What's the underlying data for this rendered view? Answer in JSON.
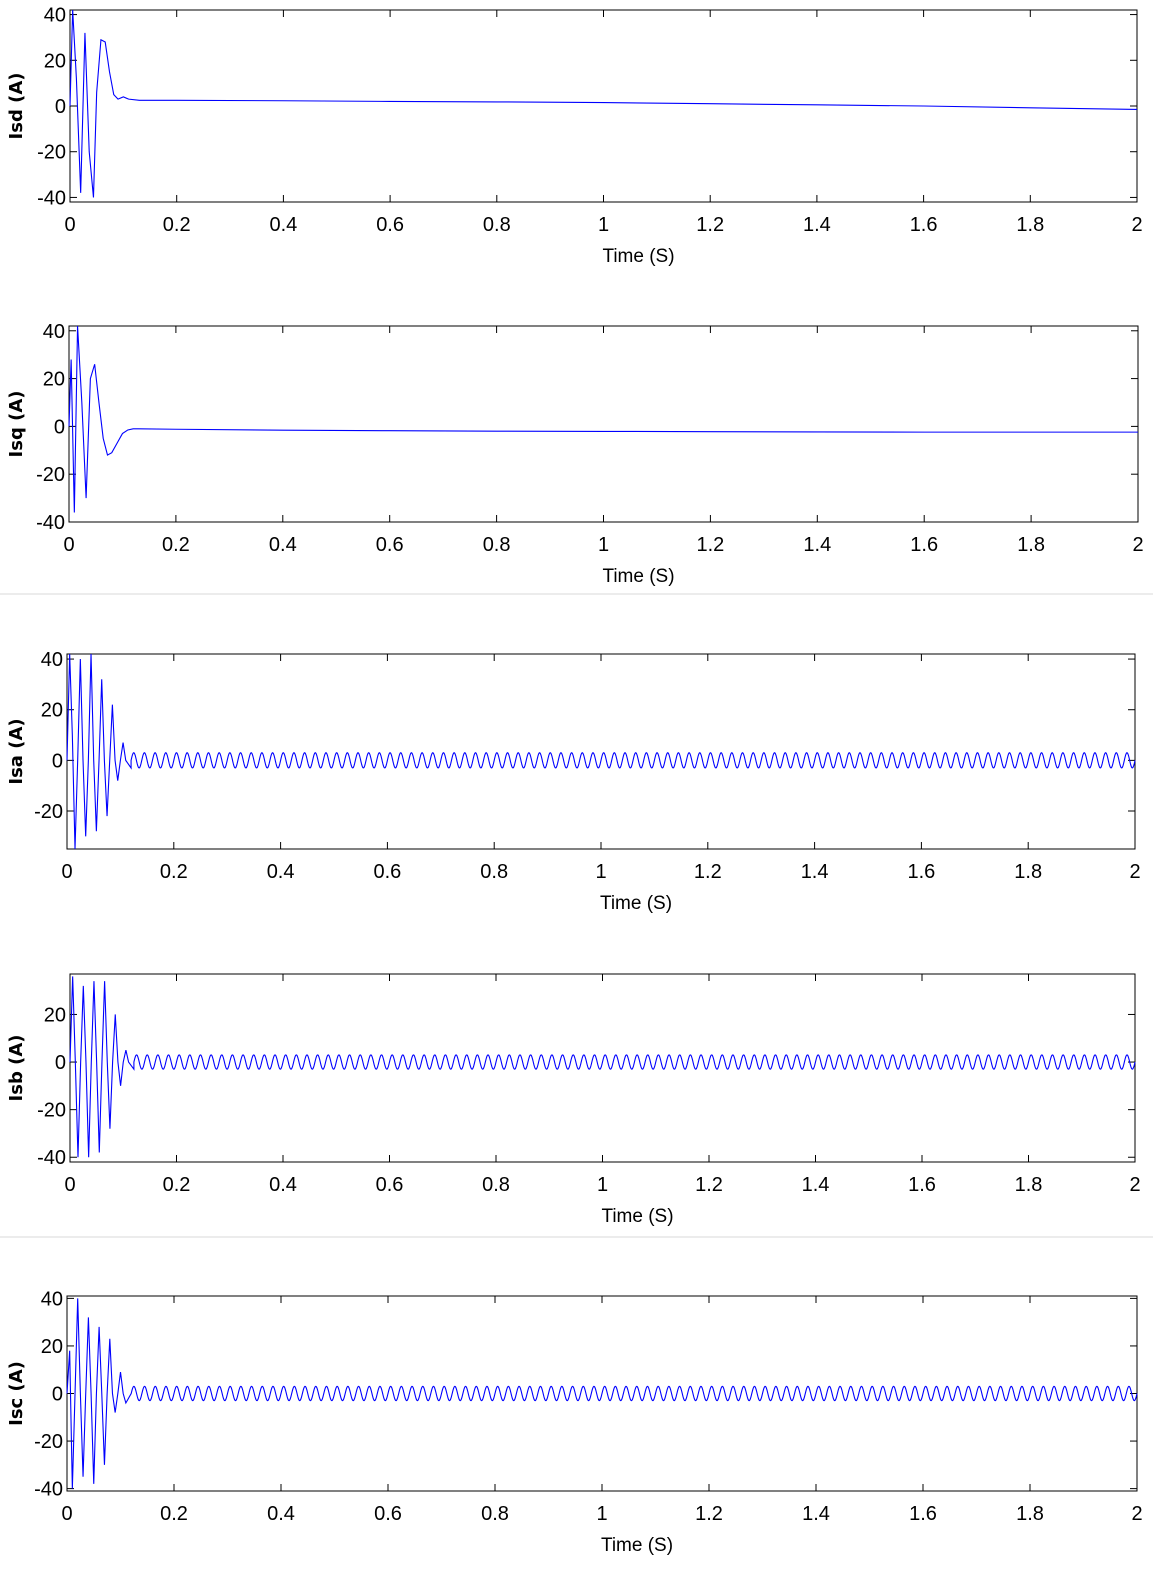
{
  "chart_data": [
    {
      "type": "line",
      "ylabel": "Isd (A)",
      "xlabel": "Time (S)",
      "xlim": [
        0,
        2
      ],
      "ylim": [
        -42,
        42
      ],
      "xticks": [
        0,
        0.2,
        0.4,
        0.6,
        0.8,
        1,
        1.2,
        1.4,
        1.6,
        1.8,
        2
      ],
      "xtick_labels": [
        "0",
        "0.2",
        "0.4",
        "0.6",
        "0.8",
        "1",
        "1.2",
        "1.4",
        "1.6",
        "1.8",
        "2"
      ],
      "yticks": [
        -40,
        -20,
        0,
        20,
        40
      ],
      "ytick_labels": [
        "-40",
        "-20",
        "0",
        "20",
        "40"
      ],
      "grid": false,
      "line_color": "#0000ff",
      "series": [
        {
          "x": [
            0,
            0.005,
            0.012,
            0.02,
            0.028,
            0.036,
            0.044,
            0.05,
            0.058,
            0.066,
            0.074,
            0.082,
            0.09,
            0.1,
            0.11,
            0.13,
            0.2,
            0.4,
            0.6,
            0.8,
            1.0,
            1.2,
            1.4,
            1.6,
            1.8,
            2.0
          ],
          "y": [
            0,
            42,
            12,
            -38,
            32,
            -20,
            -40,
            6,
            29,
            28,
            15,
            5,
            3,
            4,
            3,
            2.5,
            2.5,
            2.3,
            2.0,
            1.8,
            1.5,
            1.0,
            0.5,
            0,
            -0.8,
            -1.5
          ]
        }
      ]
    },
    {
      "type": "line",
      "ylabel": "Isq (A)",
      "xlabel": "Time (S)",
      "xlim": [
        0,
        2
      ],
      "ylim": [
        -40,
        42
      ],
      "xticks": [
        0,
        0.2,
        0.4,
        0.6,
        0.8,
        1,
        1.2,
        1.4,
        1.6,
        1.8,
        2
      ],
      "xtick_labels": [
        "0",
        "0.2",
        "0.4",
        "0.6",
        "0.8",
        "1",
        "1.2",
        "1.4",
        "1.6",
        "1.8",
        "2"
      ],
      "yticks": [
        -40,
        -20,
        0,
        20,
        40
      ],
      "ytick_labels": [
        "-40",
        "-20",
        "0",
        "20",
        "40"
      ],
      "grid": false,
      "line_color": "#0000ff",
      "series": [
        {
          "x": [
            0,
            0.004,
            0.01,
            0.016,
            0.024,
            0.032,
            0.04,
            0.048,
            0.056,
            0.064,
            0.072,
            0.08,
            0.09,
            0.1,
            0.11,
            0.12,
            0.13,
            0.2,
            0.4,
            0.6,
            0.8,
            1.0,
            1.2,
            1.4,
            1.6,
            1.8,
            2.0
          ],
          "y": [
            0,
            28,
            -36,
            42,
            10,
            -30,
            20,
            26,
            10,
            -5,
            -12,
            -11,
            -7,
            -3,
            -1.5,
            -1,
            -1,
            -1.2,
            -1.6,
            -1.8,
            -2.0,
            -2.1,
            -2.2,
            -2.3,
            -2.4,
            -2.4,
            -2.4
          ]
        }
      ]
    },
    {
      "type": "line",
      "ylabel": "Isa (A)",
      "xlabel": "Time (S)",
      "xlim": [
        0,
        2
      ],
      "ylim": [
        -35,
        42
      ],
      "xticks": [
        0,
        0.2,
        0.4,
        0.6,
        0.8,
        1,
        1.2,
        1.4,
        1.6,
        1.8,
        2
      ],
      "xtick_labels": [
        "0",
        "0.2",
        "0.4",
        "0.6",
        "0.8",
        "1",
        "1.2",
        "1.4",
        "1.6",
        "1.8",
        "2"
      ],
      "yticks": [
        -20,
        0,
        20,
        40
      ],
      "ytick_labels": [
        "-20",
        "0",
        "20",
        "40"
      ],
      "grid": false,
      "line_color": "#0000ff",
      "steady_amplitude": 3,
      "frequency_hz": 50,
      "series": [
        {
          "x": [
            0,
            0.005,
            0.01,
            0.015,
            0.02,
            0.025,
            0.03,
            0.035,
            0.04,
            0.045,
            0.05,
            0.055,
            0.06,
            0.065,
            0.07,
            0.075,
            0.08,
            0.085,
            0.09,
            0.095,
            0.1,
            0.105,
            0.11,
            0.12
          ],
          "y": [
            0,
            42,
            10,
            -35,
            0,
            40,
            0,
            -30,
            0,
            42,
            0,
            -28,
            0,
            32,
            0,
            -22,
            0,
            22,
            0,
            -8,
            0,
            7,
            0,
            -3
          ]
        }
      ]
    },
    {
      "type": "line",
      "ylabel": "Isb (A)",
      "xlabel": "Time (S)",
      "xlim": [
        0,
        2
      ],
      "ylim": [
        -42,
        37
      ],
      "xticks": [
        0,
        0.2,
        0.4,
        0.6,
        0.8,
        1,
        1.2,
        1.4,
        1.6,
        1.8,
        2
      ],
      "xtick_labels": [
        "0",
        "0.2",
        "0.4",
        "0.6",
        "0.8",
        "1",
        "1.2",
        "1.4",
        "1.6",
        "1.8",
        "2"
      ],
      "yticks": [
        -40,
        -20,
        0,
        20
      ],
      "ytick_labels": [
        "-40",
        "-20",
        "0",
        "20"
      ],
      "grid": false,
      "line_color": "#0000ff",
      "steady_amplitude": 3,
      "frequency_hz": 50,
      "series": [
        {
          "x": [
            0,
            0.005,
            0.01,
            0.015,
            0.02,
            0.025,
            0.03,
            0.035,
            0.04,
            0.045,
            0.05,
            0.055,
            0.06,
            0.065,
            0.07,
            0.075,
            0.08,
            0.085,
            0.09,
            0.095,
            0.1,
            0.105,
            0.11,
            0.12
          ],
          "y": [
            0,
            36,
            0,
            -40,
            0,
            32,
            0,
            -40,
            0,
            34,
            0,
            -38,
            0,
            34,
            0,
            -28,
            0,
            20,
            0,
            -10,
            0,
            5,
            0,
            -3
          ]
        }
      ]
    },
    {
      "type": "line",
      "ylabel": "Isc (A)",
      "xlabel": "Time (S)",
      "xlim": [
        0,
        2
      ],
      "ylim": [
        -41,
        41
      ],
      "xticks": [
        0,
        0.2,
        0.4,
        0.6,
        0.8,
        1,
        1.2,
        1.4,
        1.6,
        1.8,
        2
      ],
      "xtick_labels": [
        "0",
        "0.2",
        "0.4",
        "0.6",
        "0.8",
        "1",
        "1.2",
        "1.4",
        "1.6",
        "1.8",
        "2"
      ],
      "yticks": [
        -40,
        -20,
        0,
        20,
        40
      ],
      "ytick_labels": [
        "-40",
        "-20",
        "0",
        "20",
        "40"
      ],
      "grid": false,
      "line_color": "#0000ff",
      "steady_amplitude": 3,
      "frequency_hz": 50,
      "series": [
        {
          "x": [
            0,
            0.005,
            0.01,
            0.015,
            0.02,
            0.025,
            0.03,
            0.035,
            0.04,
            0.045,
            0.05,
            0.055,
            0.06,
            0.065,
            0.07,
            0.075,
            0.08,
            0.085,
            0.09,
            0.095,
            0.1,
            0.105,
            0.11,
            0.12
          ],
          "y": [
            0,
            18,
            -40,
            0,
            40,
            0,
            -35,
            0,
            32,
            0,
            -38,
            0,
            28,
            0,
            -30,
            0,
            23,
            0,
            -8,
            0,
            9,
            0,
            -4,
            0
          ]
        }
      ]
    }
  ]
}
